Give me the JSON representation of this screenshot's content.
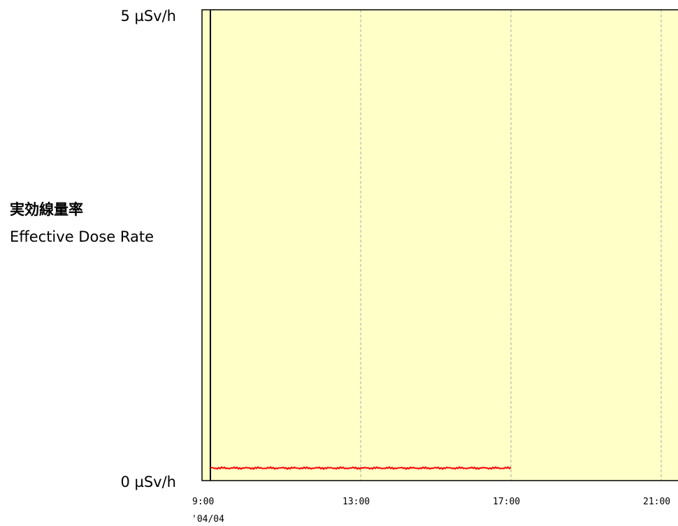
{
  "chart_data": {
    "type": "line",
    "ylabel": "実効線量率",
    "ylabel_en": "Effective Dose Rate",
    "y_max_label": "5 µSv/h",
    "y_min_label": "0 µSv/h",
    "ylim": [
      0,
      5
    ],
    "y_unit": "µSv/h",
    "x_tick_labels": [
      "9:00",
      "13:00",
      "17:00",
      "21:00"
    ],
    "x_tick_hours": [
      9,
      13,
      17,
      21
    ],
    "date_label": "'04/04",
    "xlim_hours": [
      9,
      21.4
    ],
    "grid": "vertical dashed",
    "background_color": "#ffffc8",
    "series": [
      {
        "color": "#ff0000",
        "x_hours": [
          9.0,
          10.0,
          11.0,
          12.0,
          13.0,
          14.0,
          15.0,
          16.0,
          17.0
        ],
        "values": [
          0.06,
          0.06,
          0.06,
          0.06,
          0.06,
          0.06,
          0.06,
          0.06,
          0.06
        ]
      }
    ]
  }
}
